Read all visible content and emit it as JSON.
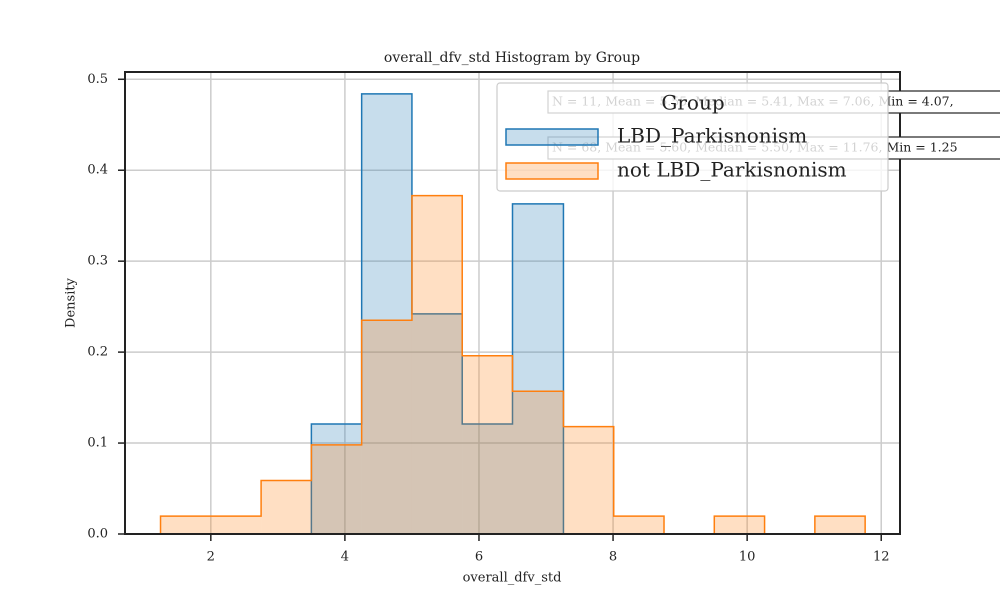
{
  "chart_data": {
    "type": "histogram",
    "title": "overall_dfv_std Histogram by Group",
    "x_label": "overall_dfv_std",
    "y_label": "Density",
    "xlim": [
      0.72,
      12.28
    ],
    "ylim": [
      0,
      0.508
    ],
    "xticks": [
      2,
      4,
      6,
      8,
      10,
      12
    ],
    "yticks": [
      {
        "value": 0,
        "label": "0.0"
      },
      0.1,
      0.2,
      0.3,
      0.4,
      0.5
    ],
    "grid": true,
    "legend_title": "Group",
    "legend_position": "upper right",
    "series": [
      {
        "name": "LBD_Parkisnonism",
        "color": "#1f77b4",
        "bins": [
          3.5,
          4.25,
          5.0,
          5.75,
          6.5,
          7.26
        ],
        "values": [
          0.121,
          0.484,
          0.242,
          0.121,
          0.363
        ]
      },
      {
        "name": "not LBD_Parkisnonism",
        "color": "#ff7f0e",
        "bins": [
          1.25,
          2.0,
          2.75,
          3.5,
          4.25,
          5.0,
          5.75,
          6.5,
          7.26,
          8.01,
          8.76,
          9.51,
          10.26,
          11.01,
          11.76
        ],
        "values": [
          0.0196,
          0.0196,
          0.0588,
          0.098,
          0.235,
          0.372,
          0.196,
          0.157,
          0.118,
          0.0196,
          0,
          0.0196,
          0,
          0.0196
        ]
      }
    ],
    "annotations": [
      "N = 11, Mean = 5.55, Median = 5.41, Max = 7.06, Min = 4.07,",
      "N = 68, Mean = 5.60, Median = 5.50, Max = 11.76, Min = 1.25"
    ]
  }
}
